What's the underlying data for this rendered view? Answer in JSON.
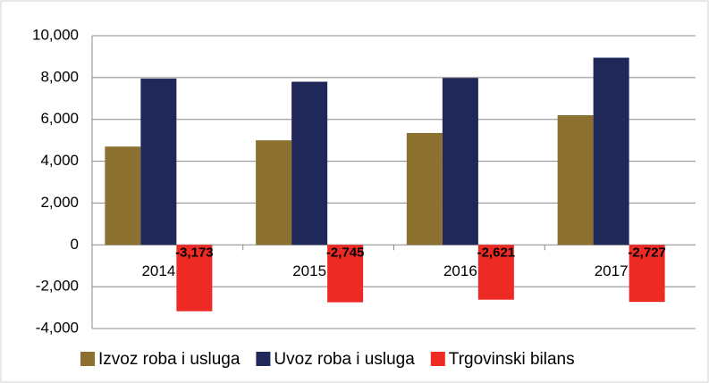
{
  "chart_data": {
    "type": "bar",
    "categories": [
      "2014",
      "2015",
      "2016",
      "2017"
    ],
    "series": [
      {
        "name": "Izvoz roba i usluga",
        "color": "#8c7030",
        "values": [
          4700,
          5000,
          5350,
          6200
        ]
      },
      {
        "name": "Uvoz roba i usluga",
        "color": "#1f2858",
        "values": [
          7950,
          7800,
          7980,
          8950
        ]
      },
      {
        "name": "Trgovinski bilans",
        "color": "#ee2a24",
        "values": [
          -3173,
          -2745,
          -2621,
          -2727
        ],
        "value_labels": [
          "-3,173",
          "-2,745",
          "-2,621",
          "-2,727"
        ]
      }
    ],
    "ylim": [
      -4000,
      10000
    ],
    "yticks": [
      {
        "value": -4000,
        "label": "-4,000"
      },
      {
        "value": -2000,
        "label": "-2,000"
      },
      0,
      {
        "value": 2000,
        "label": "2,000"
      },
      {
        "value": 4000,
        "label": "4,000"
      },
      {
        "value": 6000,
        "label": "6,000"
      },
      {
        "value": 8000,
        "label": "8,000"
      },
      {
        "value": 10000,
        "label": "10,000"
      }
    ],
    "grid": true,
    "legend": "bottom"
  }
}
